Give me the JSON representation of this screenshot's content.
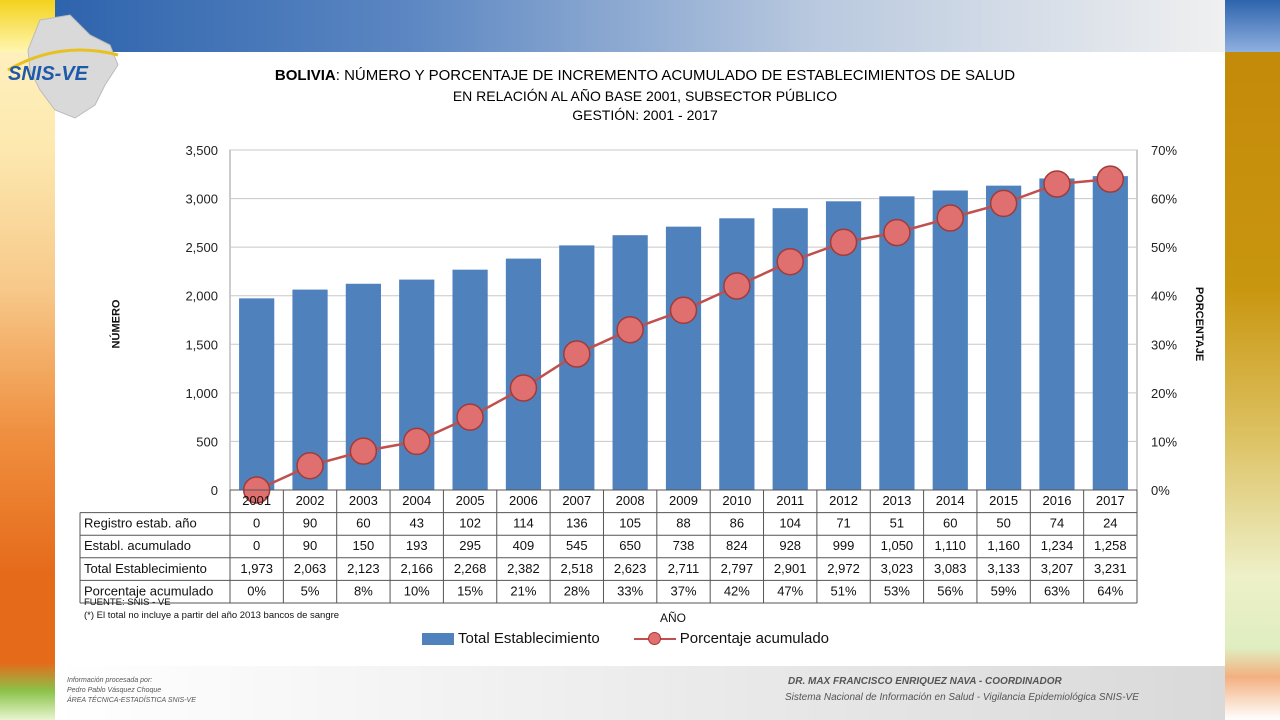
{
  "logo_text": "SNIS-VE",
  "title": {
    "bold": "BOLIVIA",
    "line1_rest": ": NÚMERO Y PORCENTAJE DE INCREMENTO ACUMULADO DE ESTABLECIMIENTOS DE SALUD",
    "line2": "EN RELACIÓN AL AÑO BASE 2001, SUBSECTOR PÚBLICO",
    "line3": "GESTIÓN: 2001 - 2017"
  },
  "colors": {
    "bar": "#4f81bd",
    "line": "#c0504d",
    "marker": "#e07070"
  },
  "chart_data": {
    "type": "bar",
    "categories": [
      "2001",
      "2002",
      "2003",
      "2004",
      "2005",
      "2006",
      "2007",
      "2008",
      "2009",
      "2010",
      "2011",
      "2012",
      "2013",
      "2014",
      "2015",
      "2016",
      "2017"
    ],
    "series": [
      {
        "name": "Total Establecimiento",
        "type": "bar",
        "axis": "left",
        "values": [
          1973,
          2063,
          2123,
          2166,
          2268,
          2382,
          2518,
          2623,
          2711,
          2797,
          2901,
          2972,
          3023,
          3083,
          3133,
          3207,
          3231
        ]
      },
      {
        "name": "Porcentaje acumulado",
        "type": "line",
        "axis": "right",
        "values": [
          0,
          5,
          8,
          10,
          15,
          21,
          28,
          33,
          37,
          42,
          47,
          51,
          53,
          56,
          59,
          63,
          64
        ]
      }
    ],
    "ylabel": "NÚMERO",
    "y2label": "PORCENTAJE",
    "xlabel": "AÑO",
    "ylim": [
      0,
      3500
    ],
    "y2lim": [
      0,
      70
    ],
    "yticks": [
      "0",
      "500",
      "1,000",
      "1,500",
      "2,000",
      "2,500",
      "3,000",
      "3,500"
    ],
    "y2ticks": [
      "0%",
      "10%",
      "20%",
      "30%",
      "40%",
      "50%",
      "60%",
      "70%"
    ],
    "grid": true,
    "legend_position": "bottom",
    "table": {
      "rows": [
        {
          "label": "Registro estab. año",
          "values": [
            "0",
            "90",
            "60",
            "43",
            "102",
            "114",
            "136",
            "105",
            "88",
            "86",
            "104",
            "71",
            "51",
            "60",
            "50",
            "74",
            "24"
          ]
        },
        {
          "label": "Establ. acumulado",
          "values": [
            "0",
            "90",
            "150",
            "193",
            "295",
            "409",
            "545",
            "650",
            "738",
            "824",
            "928",
            "999",
            "1,050",
            "1,110",
            "1,160",
            "1,234",
            "1,258"
          ]
        },
        {
          "label": "Total Establecimiento",
          "values": [
            "1,973",
            "2,063",
            "2,123",
            "2,166",
            "2,268",
            "2,382",
            "2,518",
            "2,623",
            "2,711",
            "2,797",
            "2,901",
            "2,972",
            "3,023",
            "3,083",
            "3,133",
            "3,207",
            "3,231"
          ]
        },
        {
          "label": "Porcentaje acumulado",
          "values": [
            "0%",
            "5%",
            "8%",
            "10%",
            "15%",
            "21%",
            "28%",
            "33%",
            "37%",
            "42%",
            "47%",
            "51%",
            "53%",
            "56%",
            "59%",
            "63%",
            "64%"
          ]
        }
      ]
    }
  },
  "source": {
    "line1": "FUENTE: SNIS - VE",
    "line2": "(*) El total no incluye a partir del año 2013 bancos de sangre"
  },
  "footer": {
    "left_line1": "Información procesada por:",
    "left_line2": "Pedro Pablo Vásquez Choque",
    "left_line3": "ÁREA TÉCNICA-ESTADÍSTICA  SNIS-VE",
    "right_line1": "DR. MAX FRANCISCO ENRIQUEZ NAVA - COORDINADOR",
    "right_line2": "Sistema Nacional de Información en Salud - Vigilancia Epidemiológica SNIS-VE"
  }
}
